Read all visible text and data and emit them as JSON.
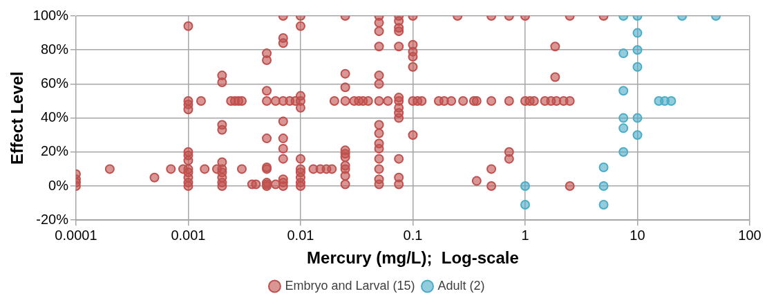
{
  "chart_data": {
    "type": "scatter",
    "xlabel": "Mercury (mg/L);  Log-scale",
    "ylabel": "Effect Level",
    "log": "x",
    "grid": true,
    "legend": "bottom",
    "marker": "circle",
    "xlim": [
      0.0001,
      100
    ],
    "xticks": [
      0.0001,
      0.001,
      0.01,
      0.1,
      1,
      10,
      100
    ],
    "ylim": [
      -20,
      100
    ],
    "yticks": [
      {
        "value": -20,
        "label": "-20%"
      },
      {
        "value": 0,
        "label": "0%"
      },
      {
        "value": 20,
        "label": "20%"
      },
      {
        "value": 40,
        "label": "40%"
      },
      {
        "value": 60,
        "label": "60%"
      },
      {
        "value": 80,
        "label": "80%"
      },
      {
        "value": 100,
        "label": "100%"
      }
    ],
    "series": [
      {
        "name": "Embryo and Larval (15)",
        "color": "#c0504d",
        "x": [
          0.0001,
          0.0001,
          0.0001,
          0.0001,
          0.0002,
          0.0005,
          0.0007,
          0.0009,
          0.001,
          0.001,
          0.001,
          0.001,
          0.001,
          0.001,
          0.001,
          0.001,
          0.001,
          0.001,
          0.001,
          0.001,
          0.0013,
          0.0014,
          0.0018,
          0.002,
          0.002,
          0.002,
          0.002,
          0.002,
          0.002,
          0.002,
          0.002,
          0.002,
          0.002,
          0.0024,
          0.0026,
          0.0028,
          0.003,
          0.003,
          0.0037,
          0.004,
          0.005,
          0.005,
          0.005,
          0.005,
          0.005,
          0.005,
          0.005,
          0.005,
          0.005,
          0.005,
          0.006,
          0.006,
          0.007,
          0.007,
          0.007,
          0.007,
          0.007,
          0.007,
          0.007,
          0.007,
          0.007,
          0.007,
          0.007,
          0.008,
          0.009,
          0.01,
          0.01,
          0.01,
          0.01,
          0.01,
          0.01,
          0.01,
          0.01,
          0.01,
          0.01,
          0.01,
          0.013,
          0.015,
          0.017,
          0.019,
          0.02,
          0.025,
          0.025,
          0.025,
          0.025,
          0.025,
          0.025,
          0.025,
          0.025,
          0.025,
          0.025,
          0.025,
          0.03,
          0.033,
          0.036,
          0.04,
          0.05,
          0.05,
          0.05,
          0.05,
          0.05,
          0.05,
          0.05,
          0.05,
          0.05,
          0.05,
          0.05,
          0.05,
          0.05,
          0.05,
          0.05,
          0.06,
          0.075,
          0.075,
          0.075,
          0.075,
          0.075,
          0.075,
          0.075,
          0.075,
          0.075,
          0.075,
          0.075,
          0.075,
          0.075,
          0.1,
          0.1,
          0.1,
          0.1,
          0.1,
          0.1,
          0.1,
          0.11,
          0.12,
          0.17,
          0.19,
          0.22,
          0.25,
          0.28,
          0.35,
          0.37,
          0.37,
          0.5,
          0.5,
          0.5,
          0.5,
          0.72,
          0.72,
          0.72,
          0.72,
          1,
          1,
          1.1,
          1.2,
          1.5,
          1.7,
          1.85,
          1.85,
          1.9,
          2.2,
          2.5,
          2.5,
          2.5,
          5
        ],
        "values": [
          0,
          2,
          4,
          7,
          10,
          5,
          10,
          10,
          0,
          2,
          5,
          8,
          10,
          15,
          18,
          20,
          45,
          48,
          50,
          94,
          50,
          10,
          10,
          0,
          2,
          5,
          8,
          10,
          14,
          33,
          36,
          61,
          65,
          50,
          50,
          50,
          50,
          10,
          1,
          1,
          0,
          1,
          2,
          10,
          11,
          28,
          50,
          56,
          74,
          78,
          1,
          50,
          0,
          2,
          4,
          16,
          22,
          28,
          38,
          50,
          84,
          87,
          100,
          50,
          50,
          0,
          2,
          5,
          8,
          10,
          16,
          46,
          50,
          53,
          94,
          100,
          10,
          10,
          10,
          10,
          50,
          1,
          6,
          10,
          12,
          17,
          19,
          21,
          50,
          58,
          66,
          100,
          50,
          50,
          50,
          50,
          1,
          4,
          10,
          16,
          22,
          25,
          31,
          36,
          50,
          60,
          65,
          82,
          91,
          96,
          100,
          50,
          1,
          5,
          16,
          40,
          43,
          46,
          50,
          52,
          82,
          91,
          93,
          97,
          100,
          30,
          50,
          70,
          76,
          79,
          83,
          100,
          50,
          50,
          50,
          50,
          50,
          100,
          50,
          50,
          50,
          3,
          0,
          10,
          50,
          100,
          16,
          20,
          50,
          100,
          50,
          100,
          50,
          50,
          50,
          50,
          64,
          82,
          50,
          50,
          0,
          50,
          100,
          100
        ]
      },
      {
        "name": "Adult (2)",
        "color": "#4bacc6",
        "x": [
          1,
          1,
          5,
          5,
          5,
          7.5,
          7.5,
          7.5,
          7.5,
          7.5,
          7.5,
          10,
          10,
          10,
          10,
          10,
          10,
          15.5,
          17.5,
          20,
          25,
          50
        ],
        "values": [
          0,
          -11,
          -11,
          0,
          11,
          20,
          34,
          40,
          56,
          78,
          100,
          30,
          40,
          70,
          80,
          90,
          100,
          50,
          50,
          50,
          100,
          100
        ]
      }
    ]
  }
}
